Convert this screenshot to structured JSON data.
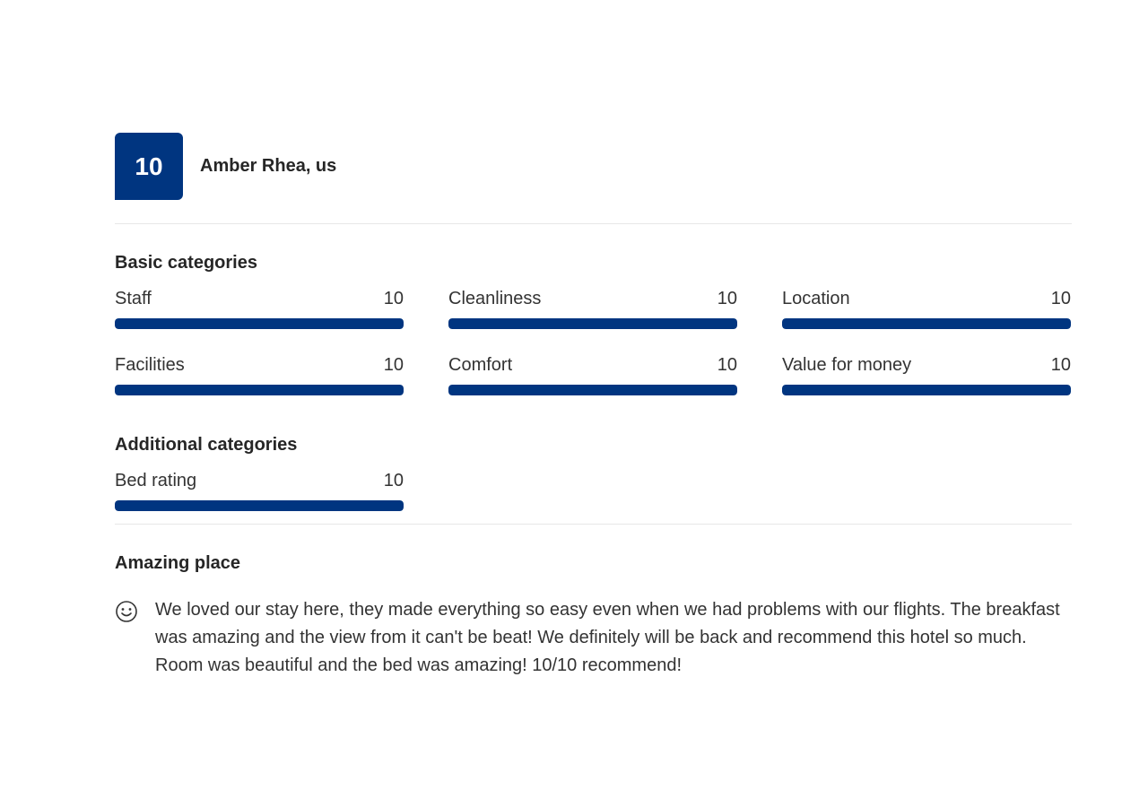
{
  "reviewer": {
    "score": "10",
    "name": "Amber Rhea, us"
  },
  "basic_categories": {
    "title": "Basic categories",
    "items": [
      {
        "label": "Staff",
        "score": "10",
        "fraction": 1.0
      },
      {
        "label": "Cleanliness",
        "score": "10",
        "fraction": 1.0
      },
      {
        "label": "Location",
        "score": "10",
        "fraction": 1.0
      },
      {
        "label": "Facilities",
        "score": "10",
        "fraction": 1.0
      },
      {
        "label": "Comfort",
        "score": "10",
        "fraction": 1.0
      },
      {
        "label": "Value for money",
        "score": "10",
        "fraction": 1.0
      }
    ]
  },
  "additional_categories": {
    "title": "Additional categories",
    "items": [
      {
        "label": "Bed rating",
        "score": "10",
        "fraction": 1.0
      }
    ]
  },
  "review": {
    "title": "Amazing place",
    "positive_icon": "smile-icon",
    "text": "We loved our stay here, they made everything so easy even when we had problems with our flights. The breakfast was amazing and the view from it can't be beat! We definitely will be back and recommend this hotel so much. Room was beautiful and the bed was amazing! 10/10 recommend!"
  },
  "colors": {
    "brand": "#003580",
    "bar_track": "#e6e6e6",
    "divider": "#e7e7e7"
  }
}
